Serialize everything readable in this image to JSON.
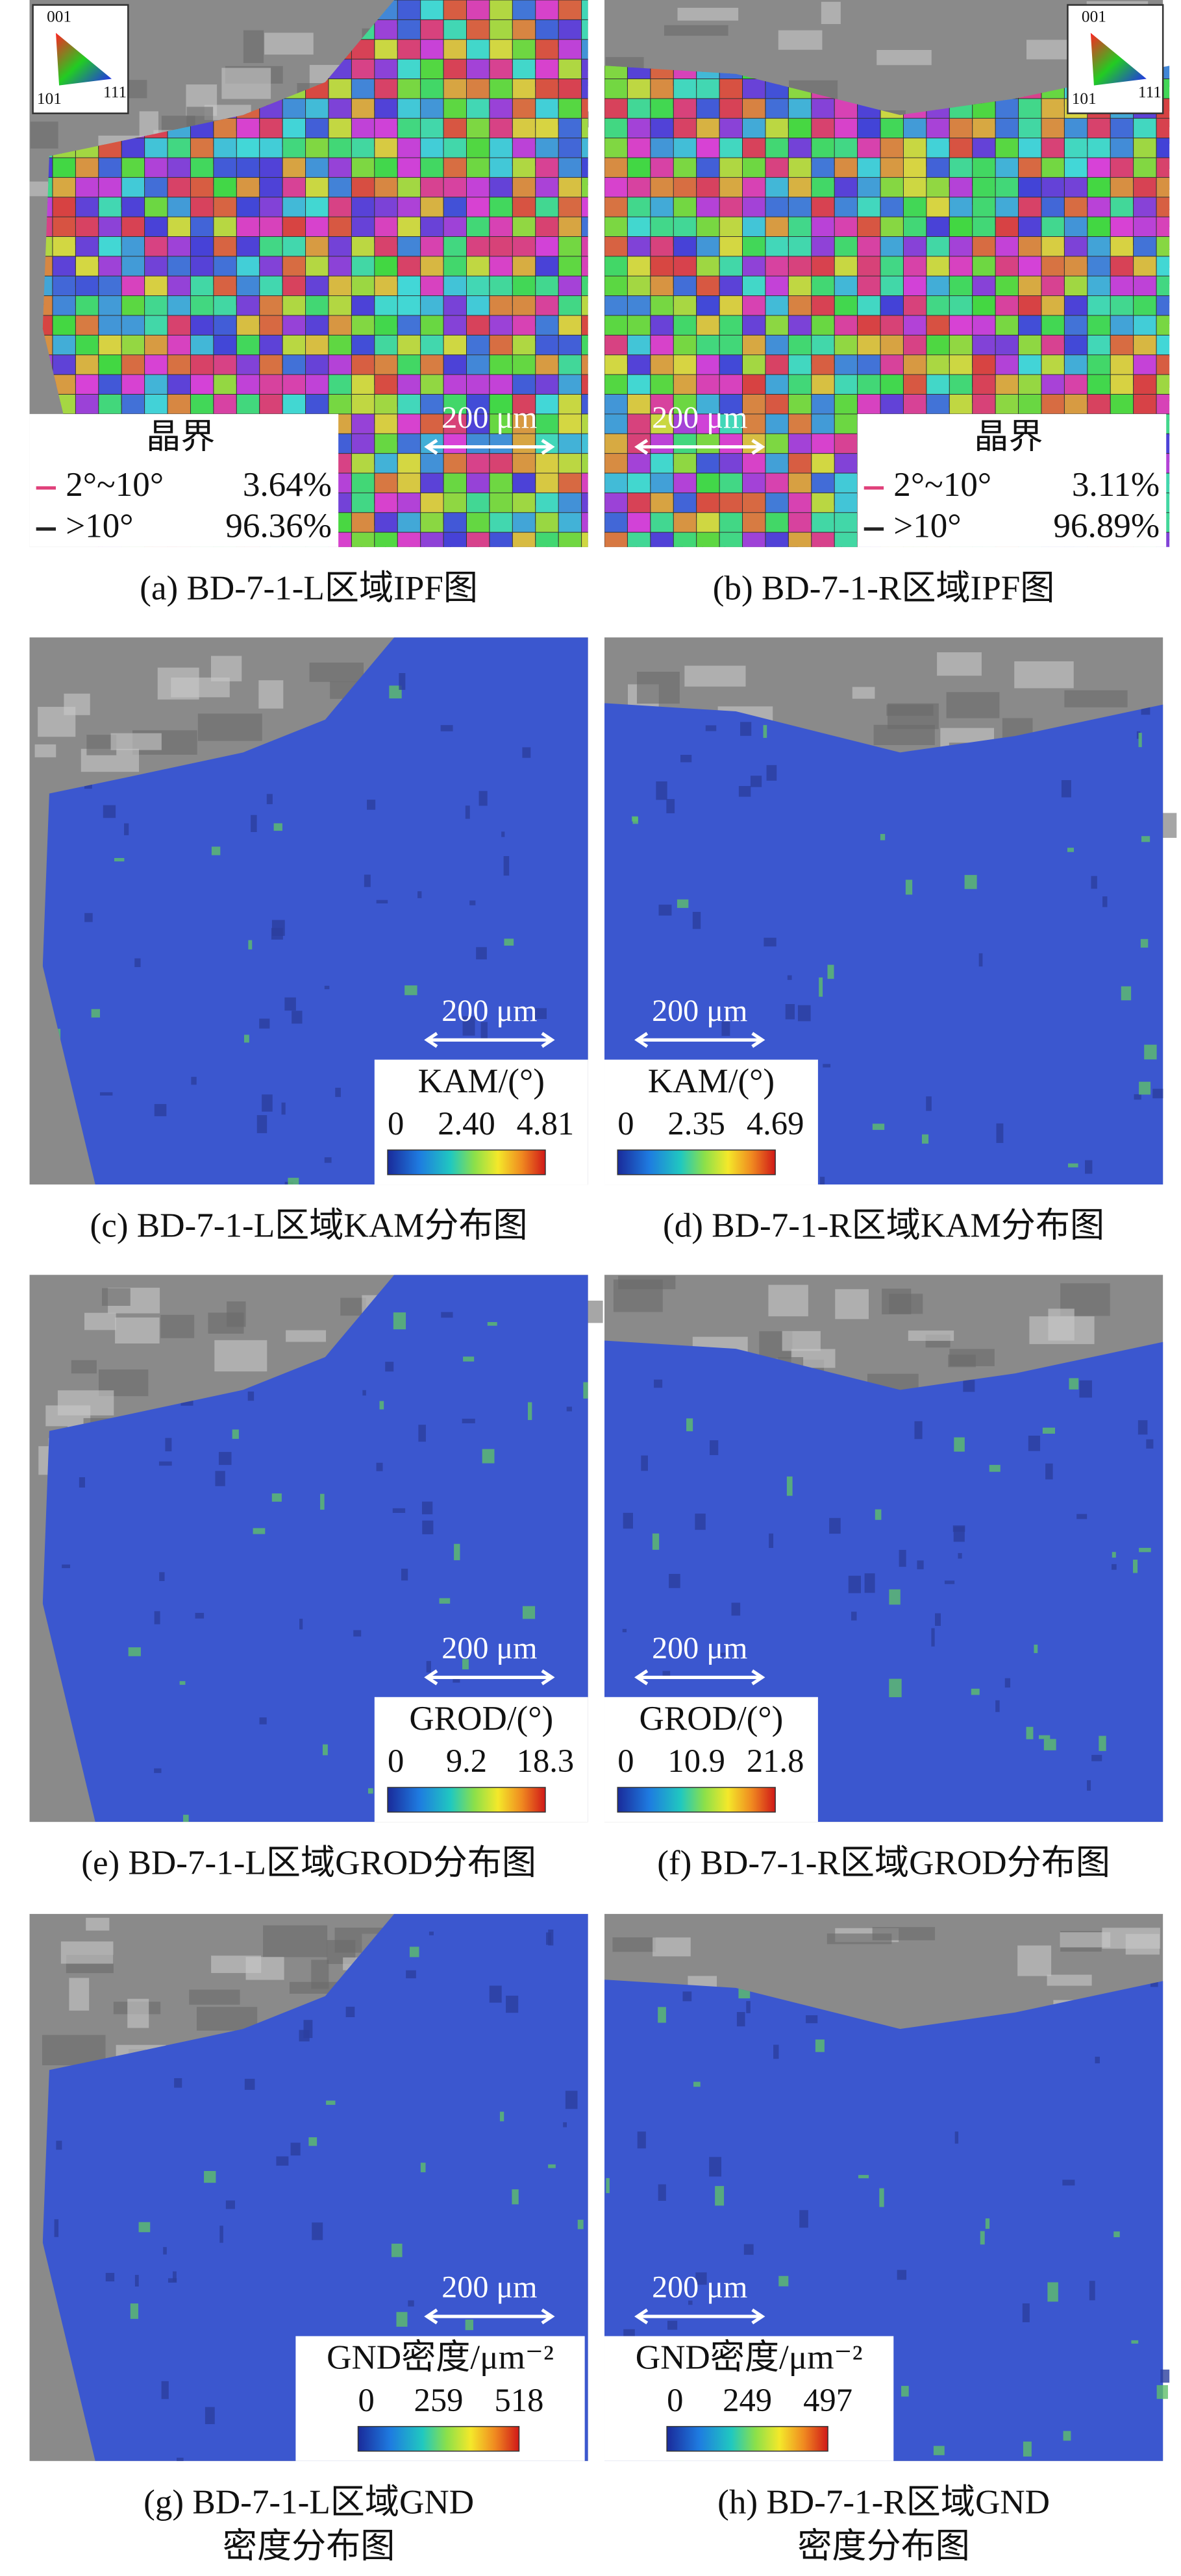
{
  "panels": [
    {
      "caption": "(a) BD-7-1-L区域IPF图",
      "scale_bar": "200 μm",
      "ipf_key": [
        "001",
        "101",
        "111"
      ],
      "legend": {
        "title": "晶界",
        "rows": [
          {
            "range": "2°~10°",
            "fraction": "3.64%"
          },
          {
            "range": ">10°",
            "fraction": "96.36%"
          }
        ]
      }
    },
    {
      "caption": "(b) BD-7-1-R区域IPF图",
      "scale_bar": "200 μm",
      "ipf_key": [
        "001",
        "101",
        "111"
      ],
      "legend": {
        "title": "晶界",
        "rows": [
          {
            "range": "2°~10°",
            "fraction": "3.11%"
          },
          {
            "range": ">10°",
            "fraction": "96.89%"
          }
        ]
      }
    },
    {
      "caption": "(c) BD-7-1-L区域KAM分布图",
      "scale_bar": "200 μm",
      "colorbar": {
        "title": "KAM/(°)",
        "ticks": [
          "0",
          "2.40",
          "4.81"
        ]
      }
    },
    {
      "caption": "(d) BD-7-1-R区域KAM分布图",
      "scale_bar": "200 μm",
      "colorbar": {
        "title": "KAM/(°)",
        "ticks": [
          "0",
          "2.35",
          "4.69"
        ]
      }
    },
    {
      "caption": "(e) BD-7-1-L区域GROD分布图",
      "scale_bar": "200 μm",
      "colorbar": {
        "title": "GROD/(°)",
        "ticks": [
          "0",
          "9.2",
          "18.3"
        ]
      }
    },
    {
      "caption": "(f) BD-7-1-R区域GROD分布图",
      "scale_bar": "200 μm",
      "colorbar": {
        "title": "GROD/(°)",
        "ticks": [
          "0",
          "10.9",
          "21.8"
        ]
      }
    },
    {
      "caption": [
        "(g) BD-7-1-L区域GND",
        "密度分布图"
      ],
      "scale_bar": "200 μm",
      "colorbar": {
        "title": "GND密度/μm⁻²",
        "ticks": [
          "0",
          "259",
          "518"
        ]
      }
    },
    {
      "caption": [
        "(h) BD-7-1-R区域GND",
        "密度分布图"
      ],
      "scale_bar": "200 μm",
      "colorbar": {
        "title": "GND密度/μm⁻²",
        "ticks": [
          "0",
          "249",
          "497"
        ]
      }
    }
  ]
}
